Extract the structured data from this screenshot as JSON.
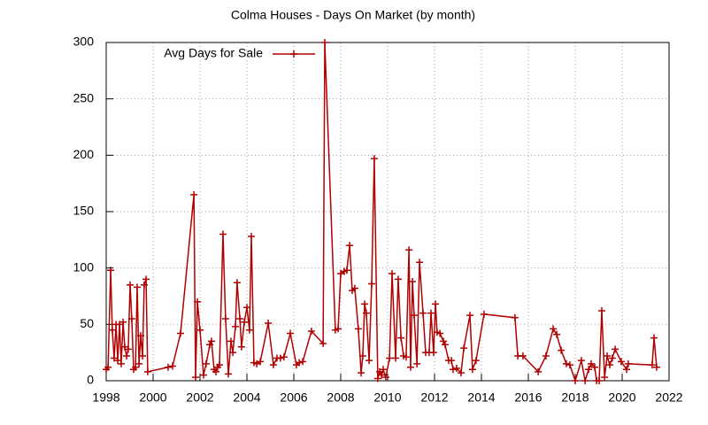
{
  "chart_data": {
    "type": "line",
    "title": "Colma Houses - Days On Market (by month)",
    "x": [
      1998.0,
      1998.08,
      1998.19,
      1998.26,
      1998.34,
      1998.42,
      1998.49,
      1998.57,
      1998.64,
      1998.72,
      1998.79,
      1998.87,
      1998.94,
      1999.02,
      1999.09,
      1999.17,
      1999.25,
      1999.32,
      1999.4,
      1999.47,
      1999.55,
      1999.62,
      1999.7,
      1999.77,
      2000.64,
      2000.83,
      2001.17,
      2001.74,
      2001.81,
      2001.89,
      2002.0,
      2002.15,
      2002.26,
      2002.42,
      2002.49,
      2002.6,
      2002.68,
      2002.75,
      2002.83,
      2002.98,
      2003.09,
      2003.21,
      2003.32,
      2003.4,
      2003.51,
      2003.58,
      2003.7,
      2003.77,
      2003.89,
      2004.0,
      2004.11,
      2004.19,
      2004.3,
      2004.42,
      2004.57,
      2004.91,
      2005.13,
      2005.28,
      2005.43,
      2005.58,
      2005.85,
      2006.11,
      2006.23,
      2006.38,
      2006.75,
      2007.25,
      2007.32,
      2007.77,
      2007.89,
      2008.0,
      2008.15,
      2008.26,
      2008.38,
      2008.49,
      2008.6,
      2008.75,
      2008.87,
      2008.94,
      2009.02,
      2009.09,
      2009.21,
      2009.32,
      2009.43,
      2009.58,
      2009.66,
      2009.74,
      2009.81,
      2009.92,
      2010.08,
      2010.19,
      2010.34,
      2010.45,
      2010.57,
      2010.68,
      2010.79,
      2010.91,
      2010.98,
      2011.06,
      2011.13,
      2011.25,
      2011.36,
      2011.51,
      2011.62,
      2011.77,
      2011.85,
      2011.96,
      2012.04,
      2012.11,
      2012.23,
      2012.38,
      2012.45,
      2012.6,
      2012.72,
      2012.79,
      2012.94,
      2013.13,
      2013.25,
      2013.51,
      2013.62,
      2013.77,
      2014.11,
      2015.43,
      2015.55,
      2015.77,
      2016.42,
      2016.75,
      2017.06,
      2017.21,
      2017.4,
      2017.62,
      2017.77,
      2018.0,
      2018.26,
      2018.42,
      2018.57,
      2018.68,
      2018.83,
      2018.91,
      2019.02,
      2019.13,
      2019.25,
      2019.36,
      2019.47,
      2019.58,
      2019.7,
      2019.96,
      2020.19,
      2020.26,
      2021.28,
      2021.36,
      2021.47
    ],
    "series": [
      {
        "name": "Avg Days for Sale",
        "color": "#b00000",
        "values": [
          10,
          12,
          98,
          45,
          20,
          50,
          18,
          50,
          15,
          52,
          30,
          22,
          28,
          85,
          55,
          10,
          12,
          83,
          15,
          40,
          22,
          85,
          90,
          8,
          12,
          13,
          42,
          165,
          3,
          70,
          45,
          5,
          15,
          32,
          35,
          10,
          8,
          12,
          14,
          130,
          55,
          6,
          35,
          25,
          48,
          87,
          55,
          30,
          52,
          65,
          45,
          128,
          16,
          15,
          17,
          51,
          14,
          20,
          20,
          21,
          42,
          14,
          16,
          17,
          44,
          33,
          300,
          45,
          46,
          95,
          97,
          98,
          120,
          80,
          82,
          46,
          7,
          22,
          68,
          60,
          18,
          86,
          197,
          2,
          8,
          5,
          10,
          3,
          20,
          95,
          20,
          90,
          38,
          22,
          21,
          116,
          12,
          88,
          58,
          15,
          105,
          60,
          25,
          25,
          60,
          25,
          68,
          43,
          42,
          35,
          32,
          18,
          18,
          10,
          11,
          7,
          29,
          58,
          10,
          18,
          59,
          56,
          22,
          22,
          8,
          22,
          46,
          41,
          27,
          15,
          14,
          0,
          18,
          0,
          10,
          15,
          12,
          0,
          0,
          62,
          3,
          22,
          14,
          20,
          28,
          17,
          10,
          15,
          14,
          38,
          12
        ]
      }
    ],
    "xlim": [
      1998,
      2022
    ],
    "xticks": [
      1998,
      2000,
      2002,
      2004,
      2006,
      2008,
      2010,
      2012,
      2014,
      2016,
      2018,
      2020,
      2022
    ],
    "ylim": [
      0,
      300
    ],
    "yticks": [
      0,
      50,
      100,
      150,
      200,
      250,
      300
    ],
    "grid": true,
    "legend": "top-left"
  }
}
